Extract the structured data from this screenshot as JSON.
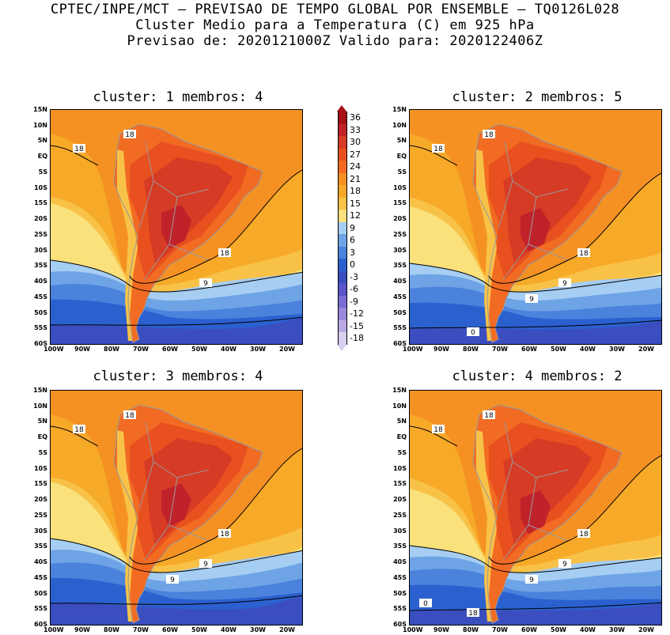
{
  "header": {
    "line1": "CPTEC/INPE/MCT – PREVISAO DE TEMPO GLOBAL POR ENSEMBLE – TQ0126L028",
    "line2": "Cluster Medio para a Temperatura (C) em 925 hPa",
    "line3": "Previsao de: 2020121000Z   Valido para: 2020122406Z"
  },
  "panels": [
    {
      "title": "cluster: 1   membros: 4",
      "contour_labels": [
        "18",
        "18",
        "18",
        "9"
      ]
    },
    {
      "title": "cluster: 2   membros: 5",
      "contour_labels": [
        "18",
        "18",
        "18",
        "9",
        "9",
        "0"
      ]
    },
    {
      "title": "cluster: 3   membros: 4",
      "contour_labels": [
        "18",
        "18",
        "18",
        "9",
        "9"
      ]
    },
    {
      "title": "cluster: 4   membros: 2",
      "contour_labels": [
        "18",
        "18",
        "18",
        "9",
        "9",
        "18",
        "0"
      ]
    }
  ],
  "lat_labels": [
    "15N",
    "10N",
    "5N",
    "EQ",
    "5S",
    "10S",
    "15S",
    "20S",
    "25S",
    "30S",
    "35S",
    "40S",
    "45S",
    "50S",
    "55S",
    "60S"
  ],
  "lon_labels": [
    "100W",
    "90W",
    "80W",
    "70W",
    "60W",
    "50W",
    "40W",
    "30W",
    "20W"
  ],
  "colorbar": {
    "labels": [
      "36",
      "33",
      "30",
      "27",
      "24",
      "21",
      "18",
      "15",
      "12",
      "9",
      "6",
      "3",
      "0",
      "-3",
      "-6",
      "-9",
      "-12",
      "-15",
      "-18"
    ],
    "colors": [
      "#a50f15",
      "#c0222a",
      "#d63b25",
      "#e8501f",
      "#f26b22",
      "#f59123",
      "#f7a928",
      "#f8c248",
      "#fae17c",
      "#a6cdf2",
      "#6ea4e6",
      "#4a82dc",
      "#2b61cf",
      "#3a4ec0",
      "#5a55c8",
      "#7a6dd2",
      "#9a89dc",
      "#bba9e6",
      "#d9cff0"
    ]
  }
}
